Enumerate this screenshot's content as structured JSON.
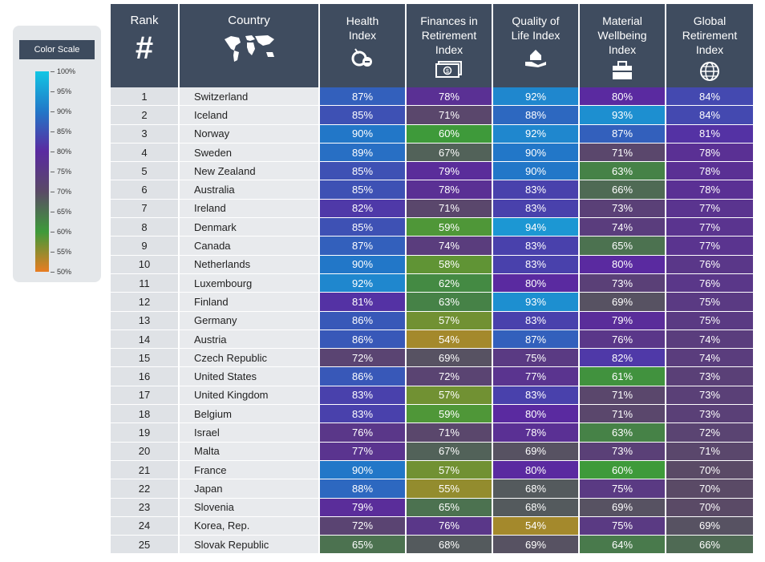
{
  "legend": {
    "title": "Color Scale",
    "ticks": [
      "100%",
      "95%",
      "90%",
      "85%",
      "80%",
      "75%",
      "70%",
      "65%",
      "60%",
      "55%",
      "50%"
    ]
  },
  "headers": {
    "rank": "Rank",
    "rank_symbol": "#",
    "country": "Country",
    "health": "Health Index",
    "finances": "Finances in Retirement Index",
    "quality": "Quality of Life Index",
    "material": "Material Wellbeing Index",
    "global": "Global Retirement Index"
  },
  "colors": {
    "header_bg": "#3f4c5f",
    "scale_stops": [
      "#e87d22",
      "#3e9a3a",
      "#5a4a66",
      "#5a2aa0",
      "#2277c8",
      "#12c6e4"
    ]
  },
  "chart_data": {
    "type": "table",
    "columns": [
      "Rank",
      "Country",
      "Health Index",
      "Finances in Retirement Index",
      "Quality of Life Index",
      "Material Wellbeing Index",
      "Global Retirement Index"
    ],
    "rows": [
      [
        "1",
        "Switzerland",
        "87%",
        "78%",
        "92%",
        "80%",
        "84%"
      ],
      [
        "2",
        "Iceland",
        "85%",
        "71%",
        "88%",
        "93%",
        "84%"
      ],
      [
        "3",
        "Norway",
        "90%",
        "60%",
        "92%",
        "87%",
        "81%"
      ],
      [
        "4",
        "Sweden",
        "89%",
        "67%",
        "90%",
        "71%",
        "78%"
      ],
      [
        "5",
        "New Zealand",
        "85%",
        "79%",
        "90%",
        "63%",
        "78%"
      ],
      [
        "6",
        "Australia",
        "85%",
        "78%",
        "83%",
        "66%",
        "78%"
      ],
      [
        "7",
        "Ireland",
        "82%",
        "71%",
        "83%",
        "73%",
        "77%"
      ],
      [
        "8",
        "Denmark",
        "85%",
        "59%",
        "94%",
        "74%",
        "77%"
      ],
      [
        "9",
        "Canada",
        "87%",
        "74%",
        "83%",
        "65%",
        "77%"
      ],
      [
        "10",
        "Netherlands",
        "90%",
        "58%",
        "83%",
        "80%",
        "76%"
      ],
      [
        "11",
        "Luxembourg",
        "92%",
        "62%",
        "80%",
        "73%",
        "76%"
      ],
      [
        "12",
        "Finland",
        "81%",
        "63%",
        "93%",
        "69%",
        "75%"
      ],
      [
        "13",
        "Germany",
        "86%",
        "57%",
        "83%",
        "79%",
        "75%"
      ],
      [
        "14",
        "Austria",
        "86%",
        "54%",
        "87%",
        "76%",
        "74%"
      ],
      [
        "15",
        "Czech Republic",
        "72%",
        "69%",
        "75%",
        "82%",
        "74%"
      ],
      [
        "16",
        "United States",
        "86%",
        "72%",
        "77%",
        "61%",
        "73%"
      ],
      [
        "17",
        "United Kingdom",
        "83%",
        "57%",
        "83%",
        "71%",
        "73%"
      ],
      [
        "18",
        "Belgium",
        "83%",
        "59%",
        "80%",
        "71%",
        "73%"
      ],
      [
        "19",
        "Israel",
        "76%",
        "71%",
        "78%",
        "63%",
        "72%"
      ],
      [
        "20",
        "Malta",
        "77%",
        "67%",
        "69%",
        "73%",
        "71%"
      ],
      [
        "21",
        "France",
        "90%",
        "57%",
        "80%",
        "60%",
        "70%"
      ],
      [
        "22",
        "Japan",
        "88%",
        "55%",
        "68%",
        "75%",
        "70%"
      ],
      [
        "23",
        "Slovenia",
        "79%",
        "65%",
        "68%",
        "69%",
        "70%"
      ],
      [
        "24",
        "Korea, Rep.",
        "72%",
        "76%",
        "54%",
        "75%",
        "69%"
      ],
      [
        "25",
        "Slovak Republic",
        "65%",
        "68%",
        "69%",
        "64%",
        "66%"
      ]
    ]
  }
}
